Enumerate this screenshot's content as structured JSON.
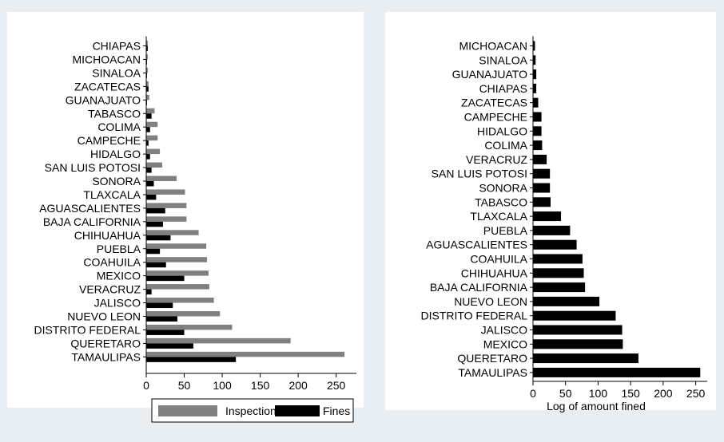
{
  "colors": {
    "background": "#e8eef2",
    "plot_background": "#ffffff",
    "inspections": "#808080",
    "fines": "#000000",
    "axis": "#000000"
  },
  "chart_data": [
    {
      "type": "bar",
      "orientation": "horizontal",
      "categories": [
        "CHIAPAS",
        "MICHOACAN",
        "SINALOA",
        "ZACATECAS",
        "GUANAJUATO",
        "TABASCO",
        "COLIMA",
        "CAMPECHE",
        "HIDALGO",
        "SAN LUIS POTOSI",
        "SONORA",
        "TLAXCALA",
        "AGUASCALIENTES",
        "BAJA CALIFORNIA",
        "CHIHUAHUA",
        "PUEBLA",
        "COAHUILA",
        "MEXICO",
        "VERACRUZ",
        "JALISCO",
        "NUEVO LEON",
        "DISTRITO FEDERAL",
        "QUERETARO",
        "TAMAULIPAS"
      ],
      "series": [
        {
          "name": "Inspections",
          "color": "#808080",
          "values": [
            2,
            2,
            2,
            3,
            4,
            11,
            15,
            15,
            18,
            21,
            40,
            51,
            53,
            53,
            69,
            79,
            80,
            82,
            83,
            89,
            97,
            113,
            190,
            261
          ]
        },
        {
          "name": "Fines",
          "color": "#000000",
          "values": [
            2,
            1,
            1,
            3,
            1,
            7,
            5,
            3,
            5,
            7,
            10,
            13,
            25,
            22,
            32,
            18,
            26,
            50,
            7,
            35,
            41,
            50,
            62,
            118
          ]
        }
      ],
      "xlim": [
        0,
        280
      ],
      "xticks": [
        "0",
        "50",
        "100",
        "150",
        "200",
        "250"
      ],
      "xlabel": "",
      "legend": "bottom"
    },
    {
      "type": "bar",
      "orientation": "horizontal",
      "categories": [
        "MICHOACAN",
        "SINALOA",
        "GUANAJUATO",
        "CHIAPAS",
        "ZACATECAS",
        "CAMPECHE",
        "HIDALGO",
        "COLIMA",
        "VERACRUZ",
        "SAN LUIS POTOSI",
        "SONORA",
        "TABASCO",
        "TLAXCALA",
        "PUEBLA",
        "AGUASCALIENTES",
        "COAHUILA",
        "CHIHUAHUA",
        "BAJA CALIFORNIA",
        "NUEVO LEON",
        "DISTRITO FEDERAL",
        "JALISCO",
        "MEXICO",
        "QUERETARO",
        "TAMAULIPAS"
      ],
      "series": [
        {
          "name": "",
          "color": "#000000",
          "values": [
            3,
            4,
            5,
            5,
            8,
            13,
            13,
            14,
            21,
            26,
            26,
            27,
            43,
            57,
            67,
            76,
            78,
            80,
            102,
            127,
            137,
            138,
            162,
            257
          ]
        }
      ],
      "xlim": [
        0,
        280
      ],
      "xticks": [
        "0",
        "50",
        "100",
        "150",
        "200",
        "250"
      ],
      "xlabel": "Log of amount fined"
    }
  ]
}
